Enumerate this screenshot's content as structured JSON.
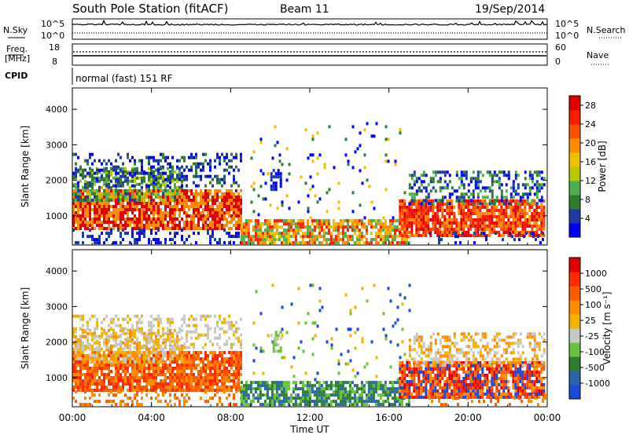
{
  "header": {
    "title": "South Pole Station (fitACF)",
    "beam": "Beam 11",
    "date": "19/Sep/2014"
  },
  "colors": {
    "power": [
      "#0000ff",
      "#1e3ca0",
      "#2e7d32",
      "#4caf50",
      "#b8c800",
      "#f0c000",
      "#ff8c00",
      "#ff5000",
      "#ff1a00",
      "#e00000"
    ],
    "velocity": [
      "#1a4bd6",
      "#2866a8",
      "#2e7d32",
      "#66c43a",
      "#c8c8c8",
      "#f0b400",
      "#ff8c00",
      "#ff5a00",
      "#ff2a00",
      "#e00000"
    ]
  },
  "strip_nsky": {
    "left_label": "N.Sky",
    "top_tick": "10^5",
    "bottom_tick": "10^0",
    "right_label": "N.Search",
    "right_top": "10^5",
    "right_bottom": "10^0"
  },
  "strip_freq": {
    "left_label_1": "Freq.",
    "left_label_2": "[MHz]",
    "top_tick": "18",
    "bottom_tick": "8",
    "right_top": "60",
    "right_bottom": "0",
    "right_label": "Nave"
  },
  "strip_cpid": {
    "left_label": "CPID",
    "text": "normal (fast) 151 RF"
  },
  "chart_data": [
    {
      "type": "heatmap",
      "xlabel": "",
      "ylabel": "Slant Range [km]",
      "x_range": [
        "00:00",
        "24:00"
      ],
      "ylim": [
        180,
        4600
      ],
      "y_ticks": [
        1000,
        2000,
        3000,
        4000
      ],
      "colorbar_label": "Power [dB]",
      "colorbar_ticks": [
        4,
        8,
        12,
        16,
        20,
        24,
        28
      ],
      "colorbar_range": [
        0,
        30
      ]
    },
    {
      "type": "heatmap",
      "xlabel": "Time UT",
      "ylabel": "Slant Range [km]",
      "x_ticks": [
        "00:00",
        "04:00",
        "08:00",
        "12:00",
        "16:00",
        "20:00",
        "00:00"
      ],
      "ylim": [
        180,
        4600
      ],
      "y_ticks": [
        1000,
        2000,
        3000,
        4000
      ],
      "colorbar_label": "Velocity [m s⁻¹]",
      "colorbar_ticks": [
        "1000",
        "500",
        "100",
        "25",
        "-25",
        "-100",
        "-500",
        "-1000"
      ]
    }
  ]
}
